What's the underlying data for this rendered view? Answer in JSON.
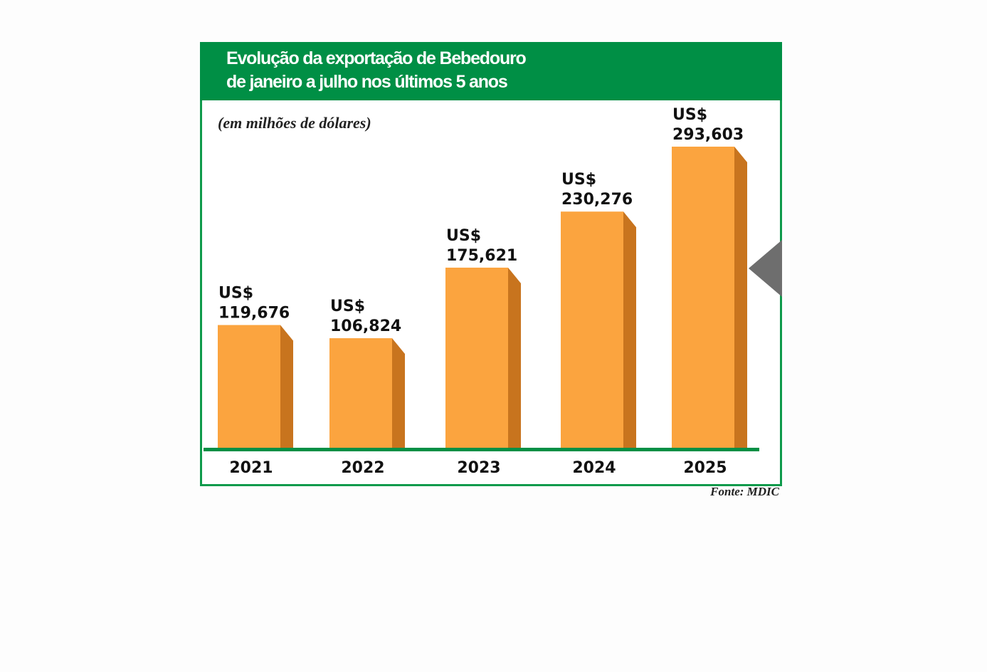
{
  "chart_data": {
    "type": "bar",
    "title": "Evolução da exportação de Bebedouro de janeiro a julho nos últimos 5 anos",
    "title_lines": [
      "Evolução da exportação de Bebedouro",
      "de janeiro a julho nos últimos 5 anos"
    ],
    "subtitle": "(em milhões de dólares)",
    "source": "Fonte: MDIC",
    "categories": [
      "2021",
      "2022",
      "2023",
      "2024",
      "2025"
    ],
    "values": [
      119.676,
      106.824,
      175.621,
      230.276,
      293.603
    ],
    "value_labels": [
      [
        "US$",
        "119,676"
      ],
      [
        "US$",
        "106,824"
      ],
      [
        "US$",
        "175,621"
      ],
      [
        "US$",
        "230,276"
      ],
      [
        "US$",
        "293,603"
      ]
    ],
    "ylim": [
      0,
      293.603
    ],
    "grid": false,
    "legend": "none",
    "colors": {
      "header": "#008f45",
      "frame": "#0e9a4b",
      "bar_front": "#fba43f",
      "bar_side": "#c8741e",
      "baseline": "#008f45",
      "pointer": "#6e6e6e"
    }
  }
}
